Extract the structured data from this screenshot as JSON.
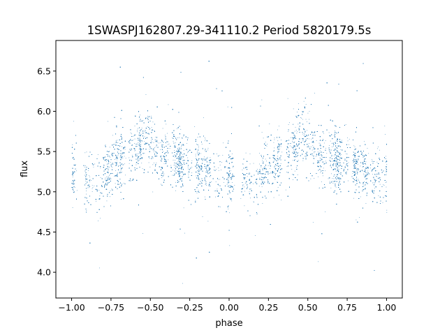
{
  "chart_data": {
    "type": "scatter",
    "title": "1SWASPJ162807.29-341110.2 Period 5820179.5s",
    "xlabel": "phase",
    "ylabel": "flux",
    "xlim": [
      -1.1,
      1.1
    ],
    "ylim": [
      3.68,
      6.88
    ],
    "x_ticks": [
      -1.0,
      -0.75,
      -0.5,
      -0.25,
      0.0,
      0.25,
      0.5,
      0.75,
      1.0
    ],
    "x_tick_labels": [
      "−1.00",
      "−0.75",
      "−0.50",
      "−0.25",
      "0.00",
      "0.25",
      "0.50",
      "0.75",
      "1.00"
    ],
    "y_ticks": [
      4.0,
      4.5,
      5.0,
      5.5,
      6.0,
      6.5
    ],
    "y_tick_labels": [
      "4.0",
      "4.5",
      "5.0",
      "5.5",
      "6.0",
      "6.5"
    ],
    "grid": false,
    "legend": "none",
    "marker_color": "#1f77b4",
    "series": [
      {
        "phase_profile": [
          {
            "phase": 0.0,
            "flux": 5.18
          },
          {
            "phase": 0.05,
            "flux": 5.2
          },
          {
            "phase": 0.08,
            "flux": 5.12
          },
          {
            "phase": 0.12,
            "flux": 5.15
          },
          {
            "phase": 0.17,
            "flux": 5.1
          },
          {
            "phase": 0.22,
            "flux": 5.25
          },
          {
            "phase": 0.28,
            "flux": 5.35
          },
          {
            "phase": 0.35,
            "flux": 5.45
          },
          {
            "phase": 0.42,
            "flux": 5.55
          },
          {
            "phase": 0.48,
            "flux": 5.75
          },
          {
            "phase": 0.52,
            "flux": 5.55
          },
          {
            "phase": 0.57,
            "flux": 5.4
          },
          {
            "phase": 0.62,
            "flux": 5.45
          },
          {
            "phase": 0.7,
            "flux": 5.38
          },
          {
            "phase": 0.78,
            "flux": 5.3
          },
          {
            "phase": 0.85,
            "flux": 5.3
          },
          {
            "phase": 0.92,
            "flux": 5.2
          },
          {
            "phase": 1.0,
            "flux": 5.18
          }
        ],
        "point_count": 14000,
        "flux_spread": 0.18
      }
    ]
  }
}
